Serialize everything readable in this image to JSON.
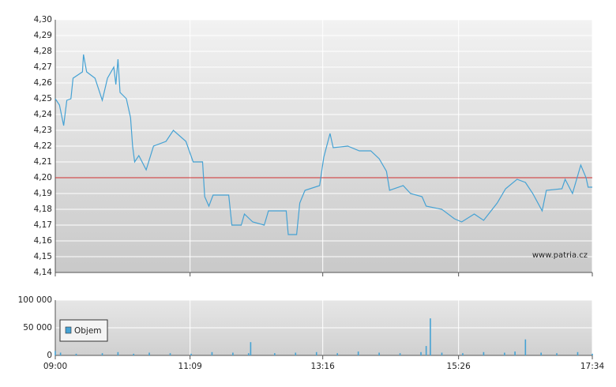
{
  "chart_data": [
    {
      "type": "line",
      "color": "#45a2d4",
      "annotation": "www.patria.cz",
      "reference_line": 4.2,
      "reference_color": "#d03030",
      "xlim": [
        "09:00",
        "17:34"
      ],
      "xticks": [
        "09:00",
        "11:09",
        "13:16",
        "15:26",
        "17:34"
      ],
      "ylim": [
        4.14,
        4.3
      ],
      "yticks": [
        {
          "value": 4.14,
          "label": "4,14"
        },
        {
          "value": 4.15,
          "label": "4,15"
        },
        {
          "value": 4.16,
          "label": "4,16"
        },
        {
          "value": 4.17,
          "label": "4,17"
        },
        {
          "value": 4.18,
          "label": "4,18"
        },
        {
          "value": 4.19,
          "label": "4,19"
        },
        {
          "value": 4.2,
          "label": "4,20"
        },
        {
          "value": 4.21,
          "label": "4,21"
        },
        {
          "value": 4.22,
          "label": "4,22"
        },
        {
          "value": 4.23,
          "label": "4,23"
        },
        {
          "value": 4.24,
          "label": "4,24"
        },
        {
          "value": 4.25,
          "label": "4,25"
        },
        {
          "value": 4.26,
          "label": "4,26"
        },
        {
          "value": 4.27,
          "label": "4,27"
        },
        {
          "value": 4.28,
          "label": "4,28"
        },
        {
          "value": 4.29,
          "label": "4,29"
        },
        {
          "value": 4.3,
          "label": "4,30"
        }
      ],
      "grid": true,
      "x": [
        "09:00",
        "09:04",
        "09:08",
        "09:11",
        "09:15",
        "09:17",
        "09:26",
        "09:27",
        "09:30",
        "09:38",
        "09:45",
        "09:50",
        "09:56",
        "09:58",
        "10:00",
        "10:02",
        "10:08",
        "10:12",
        "10:14",
        "10:16",
        "10:20",
        "10:27",
        "10:34",
        "10:46",
        "10:53",
        "11:05",
        "11:12",
        "11:21",
        "11:23",
        "11:27",
        "11:31",
        "11:46",
        "11:49",
        "11:58",
        "12:01",
        "12:09",
        "12:20",
        "12:24",
        "12:41",
        "12:43",
        "12:51",
        "12:54",
        "12:59",
        "13:13",
        "13:17",
        "13:23",
        "13:26",
        "13:40",
        "13:51",
        "14:02",
        "14:10",
        "14:17",
        "14:20",
        "14:33",
        "14:40",
        "14:51",
        "14:55",
        "15:10",
        "15:22",
        "15:29",
        "15:41",
        "15:50",
        "16:03",
        "16:11",
        "16:22",
        "16:30",
        "16:37",
        "16:46",
        "16:50",
        "17:05",
        "17:08",
        "17:15",
        "17:23",
        "17:28",
        "17:30",
        "17:34"
      ],
      "values": [
        4.25,
        4.246,
        4.233,
        4.249,
        4.25,
        4.263,
        4.267,
        4.278,
        4.267,
        4.263,
        4.249,
        4.263,
        4.27,
        4.259,
        4.275,
        4.254,
        4.25,
        4.238,
        4.22,
        4.21,
        4.214,
        4.205,
        4.22,
        4.223,
        4.23,
        4.223,
        4.21,
        4.21,
        4.188,
        4.182,
        4.189,
        4.189,
        4.17,
        4.17,
        4.177,
        4.172,
        4.17,
        4.179,
        4.179,
        4.164,
        4.164,
        4.184,
        4.192,
        4.195,
        4.213,
        4.228,
        4.219,
        4.22,
        4.217,
        4.217,
        4.212,
        4.204,
        4.192,
        4.195,
        4.19,
        4.188,
        4.182,
        4.18,
        4.174,
        4.172,
        4.177,
        4.173,
        4.184,
        4.193,
        4.199,
        4.197,
        4.19,
        4.179,
        4.192,
        4.193,
        4.199,
        4.19,
        4.208,
        4.2,
        4.194,
        4.194
      ]
    },
    {
      "type": "bar",
      "legend": "upper-left",
      "xlim": [
        "09:00",
        "17:34"
      ],
      "xticks": [
        "09:00",
        "11:09",
        "13:16",
        "15:26",
        "17:34"
      ],
      "ylim": [
        0,
        100000
      ],
      "yticks": [
        0,
        {
          "value": 50000,
          "label": "50 000"
        },
        {
          "value": 100000,
          "label": "100 000"
        }
      ],
      "grid": true,
      "x": [
        "09:00",
        "09:05",
        "09:20",
        "09:45",
        "10:00",
        "10:15",
        "10:30",
        "10:50",
        "11:10",
        "11:30",
        "11:50",
        "12:05",
        "12:07",
        "12:30",
        "12:50",
        "13:10",
        "13:30",
        "13:50",
        "14:10",
        "14:30",
        "14:50",
        "14:55",
        "14:59",
        "15:10",
        "15:30",
        "15:50",
        "16:10",
        "16:20",
        "16:30",
        "16:45",
        "17:00",
        "17:20",
        "17:34"
      ],
      "series": [
        {
          "name": "Objem",
          "color": "#45a2d4",
          "values": [
            8000,
            5000,
            3000,
            4000,
            6000,
            3000,
            5000,
            4000,
            3000,
            6000,
            5000,
            4000,
            24000,
            4000,
            5000,
            6000,
            4000,
            7000,
            5000,
            4000,
            6000,
            17000,
            67000,
            5000,
            4000,
            6000,
            5000,
            7000,
            29000,
            5000,
            4000,
            6000,
            3000
          ]
        }
      ]
    }
  ]
}
